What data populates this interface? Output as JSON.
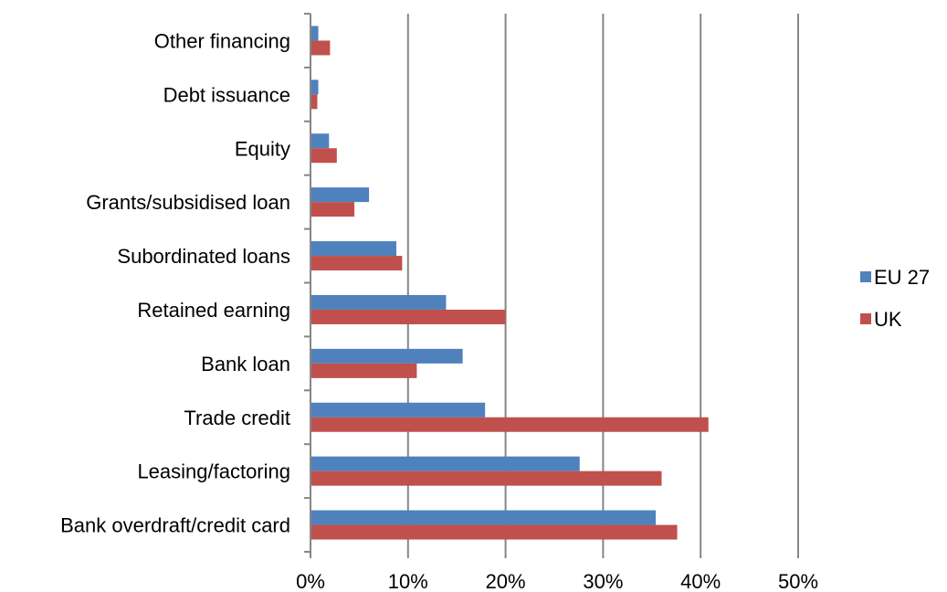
{
  "chart_data": {
    "type": "bar",
    "orientation": "horizontal",
    "categories": [
      "Other financing",
      "Debt issuance",
      "Equity",
      "Grants/subsidised loan",
      "Subordinated loans",
      "Retained earning",
      "Bank loan",
      "Trade credit",
      "Leasing/factoring",
      "Bank overdraft/credit card"
    ],
    "series": [
      {
        "name": "EU 27",
        "color": "#4F81BD",
        "values": [
          0.8,
          0.8,
          1.9,
          6.0,
          8.8,
          13.9,
          15.6,
          17.9,
          27.6,
          35.4
        ]
      },
      {
        "name": "UK",
        "color": "#C0504D",
        "values": [
          2.0,
          0.7,
          2.7,
          4.5,
          9.4,
          20.0,
          10.9,
          40.8,
          36.0,
          37.6
        ]
      }
    ],
    "xlim": [
      0,
      50
    ],
    "xticks": [
      "0%",
      "10%",
      "20%",
      "30%",
      "40%",
      "50%"
    ],
    "xtick_values": [
      0,
      10,
      20,
      30,
      40,
      50
    ],
    "grid": true,
    "gridline_color": "#868686",
    "legend_position": "right",
    "title": "",
    "xlabel": "",
    "ylabel": ""
  }
}
